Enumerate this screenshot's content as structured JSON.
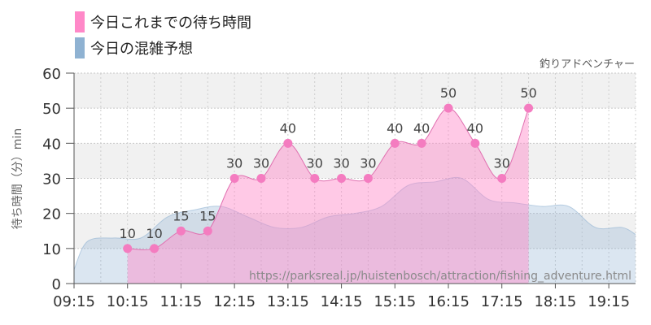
{
  "chart_data": {
    "type": "line",
    "subtitle": "釣りアドベンチャー",
    "ylabel": "待ち時間（分）min",
    "watermark": "https://parksreal.jp/huistenbosch/attraction/fishing_adventure.html",
    "ylim": [
      0,
      60
    ],
    "yticks": [
      0,
      10,
      20,
      30,
      40,
      50,
      60
    ],
    "xlim": [
      "09:15",
      "19:45"
    ],
    "xticks": [
      "09:15",
      "10:15",
      "11:15",
      "12:15",
      "13:15",
      "14:15",
      "15:15",
      "16:15",
      "17:15",
      "18:15",
      "19:15"
    ],
    "grid": true,
    "legend_position": "top-left",
    "series": [
      {
        "name": "今日これまでの待ち時間",
        "color": "#ff88c8",
        "x": [
          "10:15",
          "10:45",
          "11:15",
          "11:45",
          "12:15",
          "12:45",
          "13:15",
          "13:45",
          "14:15",
          "14:45",
          "15:15",
          "15:45",
          "16:15",
          "16:45",
          "17:15",
          "17:45"
        ],
        "values": [
          10,
          10,
          15,
          15,
          30,
          30,
          40,
          30,
          30,
          30,
          40,
          40,
          50,
          40,
          30,
          50
        ]
      },
      {
        "name": "今日の混雑予想",
        "color": "#8fb2d2",
        "x": [
          "09:15",
          "09:30",
          "10:00",
          "10:30",
          "11:00",
          "11:30",
          "12:00",
          "12:30",
          "13:00",
          "13:30",
          "14:00",
          "14:30",
          "15:00",
          "15:30",
          "16:00",
          "16:30",
          "17:00",
          "17:30",
          "18:00",
          "18:30",
          "19:00",
          "19:30",
          "19:45"
        ],
        "values": [
          4,
          12,
          13,
          13,
          19,
          21,
          22,
          19,
          16,
          16,
          19,
          20,
          22,
          28,
          29,
          30,
          24,
          23,
          22,
          22,
          16,
          16,
          14
        ]
      }
    ]
  }
}
